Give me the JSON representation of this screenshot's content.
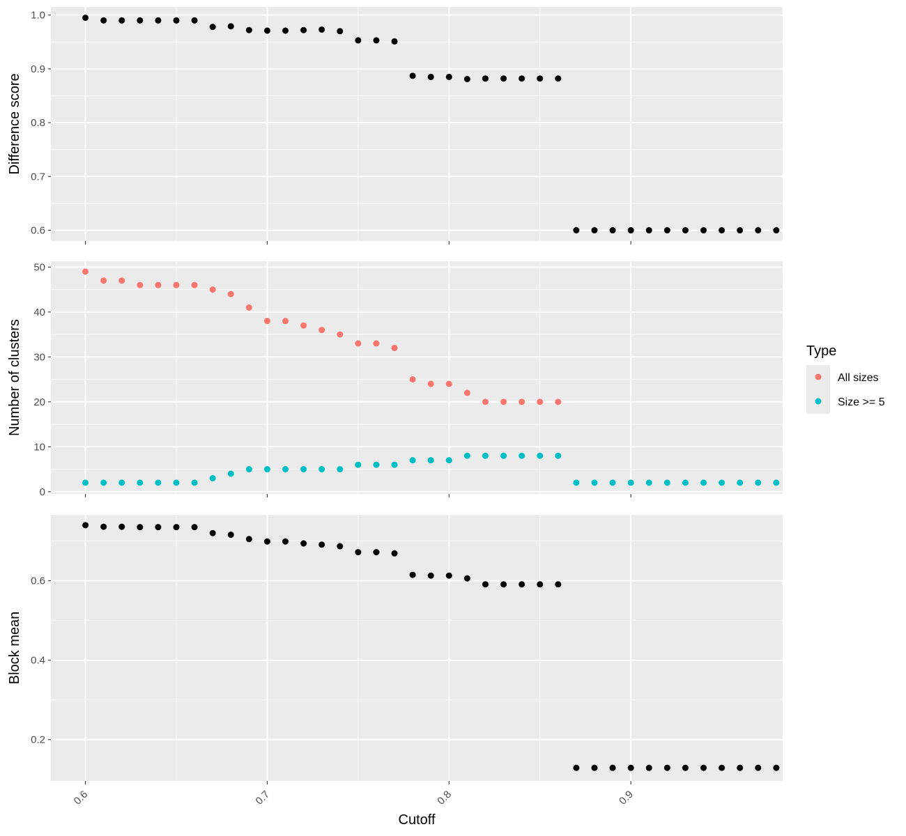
{
  "chart_data": {
    "type": "scatter",
    "xlabel": "Cutoff",
    "x_ticks": [
      "0.6",
      "0.7",
      "0.8",
      "0.9"
    ],
    "x_tick_values": [
      0.6,
      0.7,
      0.8,
      0.9
    ],
    "xlim": [
      0.581,
      0.9835
    ],
    "x": [
      0.6,
      0.61,
      0.62,
      0.63,
      0.64,
      0.65,
      0.66,
      0.67,
      0.68,
      0.69,
      0.7,
      0.71,
      0.72,
      0.73,
      0.74,
      0.75,
      0.76,
      0.77,
      0.78,
      0.79,
      0.8,
      0.81,
      0.82,
      0.83,
      0.84,
      0.85,
      0.86,
      0.87,
      0.88,
      0.89,
      0.9,
      0.91,
      0.92,
      0.93,
      0.94,
      0.95,
      0.96,
      0.97,
      0.98
    ],
    "background": "#EBEBEB",
    "grid": true,
    "legend": {
      "title": "Type",
      "position": "right",
      "entries": [
        "All sizes",
        "Size >= 5"
      ]
    },
    "panels": [
      {
        "ylabel": "Difference score",
        "ylim": [
          0.58,
          1.015
        ],
        "y_ticks": [
          "0.6",
          "0.7",
          "0.8",
          "0.9",
          "1.0"
        ],
        "y_tick_values": [
          0.6,
          0.7,
          0.8,
          0.9,
          1.0
        ],
        "y_minor": [
          0.65,
          0.75,
          0.85,
          0.95
        ],
        "series": [
          {
            "color": "#000000",
            "values": [
              0.995,
              0.99,
              0.99,
              0.99,
              0.99,
              0.99,
              0.99,
              0.978,
              0.979,
              0.972,
              0.971,
              0.971,
              0.972,
              0.973,
              0.97,
              0.953,
              0.953,
              0.951,
              0.887,
              0.885,
              0.885,
              0.881,
              0.882,
              0.882,
              0.882,
              0.882,
              0.882,
              0.6,
              0.6,
              0.6,
              0.6,
              0.6,
              0.6,
              0.6,
              0.6,
              0.6,
              0.6,
              0.6,
              0.6
            ]
          }
        ]
      },
      {
        "ylabel": "Number of clusters",
        "ylim": [
          -0.5,
          51.3
        ],
        "y_ticks": [
          "0",
          "10",
          "20",
          "30",
          "40",
          "50"
        ],
        "y_tick_values": [
          0,
          10,
          20,
          30,
          40,
          50
        ],
        "y_minor": [
          5,
          15,
          25,
          35,
          45
        ],
        "series": [
          {
            "name": "All sizes",
            "color": "#F8766D",
            "values": [
              49,
              47,
              47,
              46,
              46,
              46,
              46,
              45,
              44,
              41,
              38,
              38,
              37,
              36,
              35,
              33,
              33,
              32,
              25,
              24,
              24,
              22,
              20,
              20,
              20,
              20,
              20,
              null,
              null,
              null,
              null,
              null,
              null,
              null,
              null,
              null,
              null,
              null,
              null
            ]
          },
          {
            "name": "Size >= 5",
            "color": "#00BFC4",
            "values": [
              2,
              2,
              2,
              2,
              2,
              2,
              2,
              3,
              4,
              5,
              5,
              5,
              5,
              5,
              5,
              6,
              6,
              6,
              7,
              7,
              7,
              8,
              8,
              8,
              8,
              8,
              8,
              2,
              2,
              2,
              2,
              2,
              2,
              2,
              2,
              2,
              2,
              2,
              2
            ]
          }
        ]
      },
      {
        "ylabel": "Block mean",
        "ylim": [
          0.096,
          0.766
        ],
        "y_ticks": [
          "0.2",
          "0.4",
          "0.6"
        ],
        "y_tick_values": [
          0.2,
          0.4,
          0.6
        ],
        "y_minor": [
          0.3,
          0.5,
          0.7
        ],
        "series": [
          {
            "color": "#000000",
            "values": [
              0.74,
              0.736,
              0.736,
              0.735,
              0.735,
              0.735,
              0.735,
              0.72,
              0.716,
              0.705,
              0.699,
              0.699,
              0.694,
              0.691,
              0.687,
              0.672,
              0.672,
              0.669,
              0.615,
              0.613,
              0.613,
              0.606,
              0.591,
              0.591,
              0.591,
              0.591,
              0.591,
              0.129,
              0.129,
              0.129,
              0.129,
              0.129,
              0.129,
              0.129,
              0.129,
              0.129,
              0.129,
              0.129,
              0.129
            ]
          }
        ]
      }
    ]
  }
}
